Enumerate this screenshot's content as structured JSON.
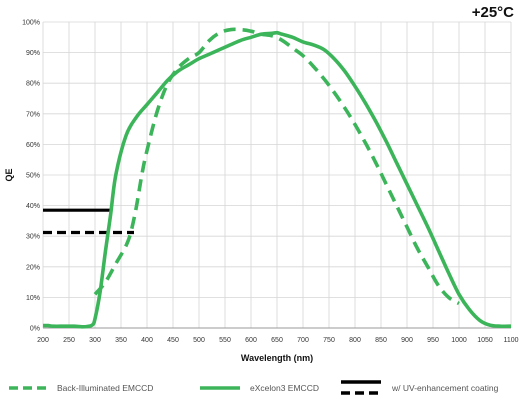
{
  "temperature_label": "+25°C",
  "colors": {
    "green": "#3cb55a",
    "black": "#000000",
    "grid": "#d6d6d6",
    "legend_text": "#555555"
  },
  "chart_data": {
    "type": "line",
    "title": "",
    "xlabel": "Wavelength (nm)",
    "ylabel": "QE",
    "xlim": [
      200,
      1100
    ],
    "ylim": [
      0,
      100
    ],
    "x_ticks": [
      200,
      250,
      300,
      350,
      400,
      450,
      500,
      550,
      600,
      650,
      700,
      750,
      800,
      850,
      900,
      950,
      1000,
      1050,
      1100
    ],
    "y_ticks": [
      0,
      10,
      20,
      30,
      40,
      50,
      60,
      70,
      80,
      90,
      100
    ],
    "y_tick_labels": [
      "0%",
      "10%",
      "20%",
      "30%",
      "40%",
      "50%",
      "60%",
      "70%",
      "80%",
      "90%",
      "100%"
    ],
    "grid": true,
    "series": [
      {
        "name": "Back-Illuminated EMCCD",
        "style": "dashed",
        "color": "#3cb55a",
        "x": [
          300,
          320,
          340,
          360,
          370,
          380,
          390,
          400,
          420,
          440,
          460,
          480,
          500,
          520,
          540,
          560,
          580,
          600,
          620,
          640,
          660,
          680,
          700,
          720,
          740,
          760,
          780,
          800,
          820,
          840,
          860,
          880,
          900,
          920,
          940,
          960,
          980,
          1000
        ],
        "y": [
          11,
          15,
          21,
          27,
          32,
          40,
          50,
          58,
          71,
          80,
          85,
          88,
          90,
          94,
          96.5,
          97.5,
          97.5,
          97,
          96,
          95.5,
          94,
          91.5,
          89,
          85.5,
          81.5,
          77,
          72,
          66.5,
          60.5,
          54,
          47,
          40,
          33,
          26,
          20,
          14,
          10,
          8
        ]
      },
      {
        "name": "eXcelon3 EMCCD",
        "style": "solid",
        "color": "#3cb55a",
        "x": [
          200,
          210,
          220,
          240,
          260,
          275,
          285,
          295,
          300,
          310,
          320,
          330,
          340,
          360,
          380,
          400,
          420,
          440,
          460,
          480,
          500,
          520,
          540,
          560,
          580,
          600,
          620,
          640,
          650,
          660,
          680,
          700,
          720,
          740,
          760,
          780,
          800,
          820,
          840,
          860,
          880,
          900,
          920,
          940,
          960,
          980,
          1000,
          1020,
          1040,
          1060,
          1080,
          1100
        ],
        "y": [
          0.8,
          0.8,
          0.6,
          0.6,
          0.6,
          0.4,
          0.5,
          1,
          3,
          12,
          25,
          37,
          50,
          63,
          69,
          73,
          77,
          81,
          84,
          86,
          88,
          89.5,
          91,
          92.5,
          94,
          95,
          96,
          96.3,
          96.5,
          96,
          95,
          93.5,
          92.5,
          91,
          88,
          84,
          79,
          73.5,
          67.5,
          61,
          54,
          47,
          40,
          33,
          25.5,
          18,
          11,
          6,
          2.5,
          0.9,
          0.6,
          0.6
        ]
      }
    ],
    "reference_marks": [
      {
        "style": "solid",
        "color": "#000000",
        "value": 38.5,
        "x_range": [
          200,
          333
        ]
      },
      {
        "style": "dashed",
        "color": "#000000",
        "value": 31.2,
        "x_range": [
          200,
          375
        ]
      }
    ],
    "legend": {
      "placement": "bottom",
      "entries": [
        {
          "label": "Back-Illuminated EMCCD",
          "style": "dashed",
          "color": "#3cb55a"
        },
        {
          "label": "eXcelon3 EMCCD",
          "style": "solid",
          "color": "#3cb55a"
        },
        {
          "label": "w/ UV-enhancement coating",
          "style": "black solid + dashed",
          "color": "#000000"
        }
      ]
    }
  }
}
